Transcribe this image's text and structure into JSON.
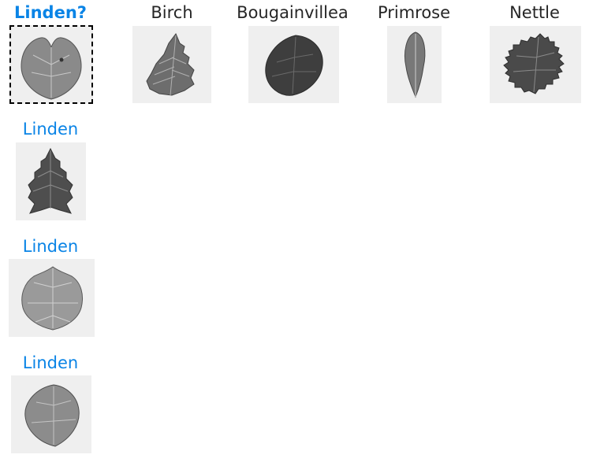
{
  "query": {
    "label": "Linden?"
  },
  "references": [
    {
      "label": "Birch"
    },
    {
      "label": "Bougainvillea"
    },
    {
      "label": "Primrose"
    },
    {
      "label": "Nettle"
    }
  ],
  "matches": [
    {
      "label": "Linden"
    },
    {
      "label": "Linden"
    },
    {
      "label": "Linden"
    }
  ],
  "colors": {
    "match_label": "#0a84e6",
    "reference_label": "#262626",
    "thumbnail_background": "#efefef"
  }
}
